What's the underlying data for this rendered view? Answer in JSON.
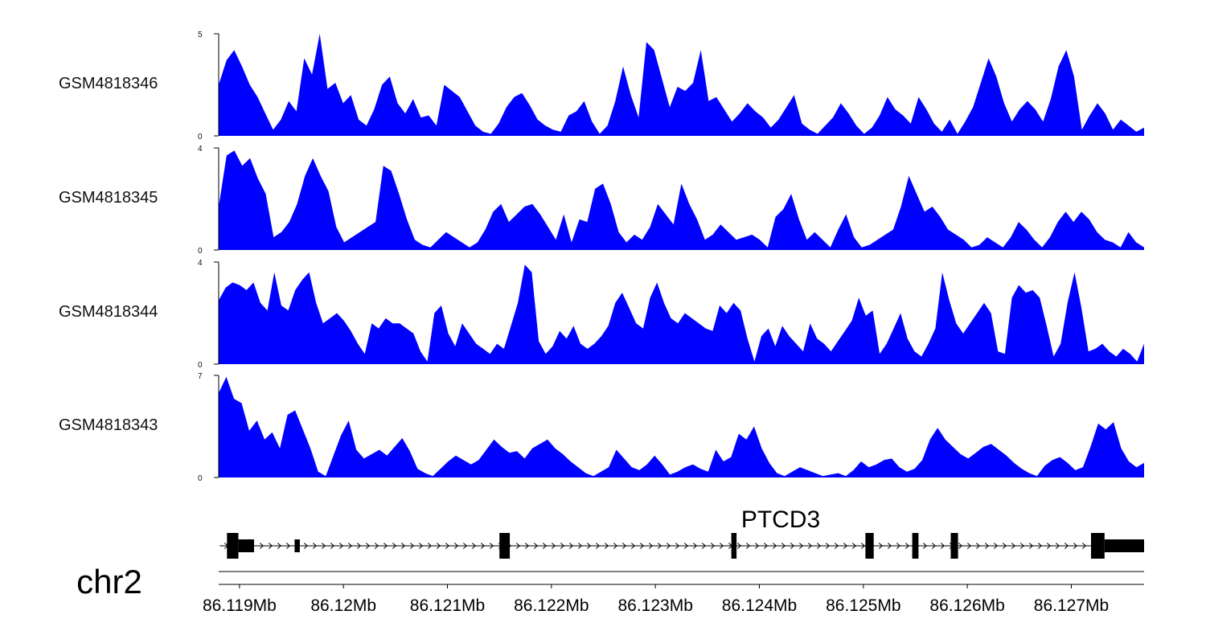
{
  "chart_data": {
    "type": "area",
    "title": "",
    "chromosome": "chr2",
    "xlabel": "",
    "x_unit": "Mb",
    "xlim": [
      86.1188,
      86.1277
    ],
    "colors": {
      "fill": "#0000ff",
      "axis": "#000000"
    },
    "tracks": [
      {
        "name": "GSM4818346",
        "ylim": [
          0,
          5
        ],
        "y_ticks": [
          "5",
          "0"
        ],
        "values": [
          2.5,
          3.7,
          4.2,
          3.4,
          2.5,
          1.9,
          1.1,
          0.3,
          0.8,
          1.7,
          1.2,
          3.8,
          3.0,
          5.0,
          2.3,
          2.6,
          1.6,
          2.0,
          0.8,
          0.5,
          1.3,
          2.5,
          2.9,
          1.6,
          1.1,
          1.8,
          0.9,
          1.0,
          0.5,
          2.5,
          2.2,
          1.9,
          1.2,
          0.5,
          0.2,
          0.1,
          0.6,
          1.4,
          1.9,
          2.1,
          1.5,
          0.8,
          0.5,
          0.3,
          0.2,
          1.0,
          1.2,
          1.7,
          0.7,
          0.1,
          0.5,
          1.7,
          3.4,
          2.0,
          0.9,
          4.6,
          4.2,
          2.8,
          1.4,
          2.4,
          2.2,
          2.6,
          4.2,
          1.7,
          1.9,
          1.3,
          0.7,
          1.1,
          1.6,
          1.2,
          0.9,
          0.4,
          0.8,
          1.4,
          2.0,
          0.6,
          0.3,
          0.1,
          0.5,
          0.9,
          1.6,
          1.1,
          0.5,
          0.1,
          0.4,
          1.0,
          1.9,
          1.3,
          1.0,
          0.6,
          1.9,
          1.3,
          0.6,
          0.2,
          0.8,
          0.1,
          0.7,
          1.4,
          2.6,
          3.8,
          2.9,
          1.6,
          0.7,
          1.3,
          1.7,
          1.3,
          0.7,
          1.8,
          3.4,
          4.2,
          2.9,
          0.3,
          1.0,
          1.6,
          1.1,
          0.3,
          0.8,
          0.5,
          0.2,
          0.4
        ]
      },
      {
        "name": "GSM4818345",
        "ylim": [
          0,
          4
        ],
        "y_ticks": [
          "4",
          "0"
        ],
        "values": [
          1.7,
          3.7,
          3.9,
          3.3,
          3.6,
          2.8,
          2.2,
          0.5,
          0.7,
          1.1,
          1.8,
          2.9,
          3.6,
          2.9,
          2.3,
          0.9,
          0.3,
          0.5,
          0.7,
          0.9,
          1.1,
          3.3,
          3.1,
          2.2,
          1.2,
          0.4,
          0.2,
          0.1,
          0.4,
          0.7,
          0.5,
          0.3,
          0.1,
          0.3,
          0.8,
          1.5,
          1.8,
          1.1,
          1.4,
          1.7,
          1.8,
          1.4,
          0.9,
          0.4,
          1.4,
          0.3,
          1.2,
          1.1,
          2.4,
          2.6,
          1.8,
          0.7,
          0.3,
          0.6,
          0.4,
          0.9,
          1.8,
          1.4,
          1.0,
          2.6,
          1.8,
          1.2,
          0.4,
          0.6,
          1.0,
          0.7,
          0.4,
          0.5,
          0.6,
          0.4,
          0.1,
          1.3,
          1.6,
          2.2,
          1.2,
          0.4,
          0.7,
          0.4,
          0.1,
          0.8,
          1.4,
          0.5,
          0.1,
          0.2,
          0.4,
          0.6,
          0.8,
          1.7,
          2.9,
          2.2,
          1.5,
          1.7,
          1.3,
          0.8,
          0.6,
          0.4,
          0.1,
          0.2,
          0.5,
          0.3,
          0.1,
          0.5,
          1.1,
          0.8,
          0.4,
          0.1,
          0.5,
          1.1,
          1.5,
          1.1,
          1.5,
          1.2,
          0.7,
          0.4,
          0.3,
          0.1,
          0.7,
          0.3,
          0.1
        ]
      },
      {
        "name": "GSM4818344",
        "ylim": [
          0,
          4
        ],
        "y_ticks": [
          "4",
          "0"
        ],
        "values": [
          2.5,
          3.0,
          3.2,
          3.1,
          2.9,
          3.2,
          2.4,
          2.1,
          3.6,
          2.3,
          2.1,
          2.9,
          3.3,
          3.6,
          2.4,
          1.6,
          1.8,
          2.0,
          1.7,
          1.3,
          0.8,
          0.4,
          1.6,
          1.4,
          1.8,
          1.6,
          1.6,
          1.4,
          1.2,
          0.5,
          0.1,
          2.0,
          2.3,
          1.2,
          0.7,
          1.6,
          1.2,
          0.8,
          0.6,
          0.4,
          0.8,
          0.6,
          1.5,
          2.4,
          3.9,
          3.6,
          0.9,
          0.4,
          0.7,
          1.3,
          1.0,
          1.5,
          0.8,
          0.6,
          0.8,
          1.1,
          1.5,
          2.4,
          2.8,
          2.2,
          1.6,
          1.4,
          2.6,
          3.2,
          2.4,
          1.8,
          1.6,
          2.0,
          1.8,
          1.6,
          1.4,
          1.3,
          2.3,
          2.0,
          2.4,
          2.1,
          1.0,
          0.1,
          1.1,
          1.4,
          0.7,
          1.5,
          1.1,
          0.8,
          0.5,
          1.6,
          1.0,
          0.8,
          0.5,
          0.9,
          1.3,
          1.7,
          2.6,
          1.9,
          2.1,
          0.4,
          0.8,
          1.4,
          2.0,
          1.0,
          0.5,
          0.3,
          0.8,
          1.4,
          3.6,
          2.5,
          1.6,
          1.2,
          1.6,
          2.0,
          2.4,
          2.0,
          0.5,
          0.4,
          2.6,
          3.1,
          2.8,
          2.9,
          2.6,
          1.5,
          0.3,
          0.8,
          2.4,
          3.6,
          2.2,
          0.5,
          0.6,
          0.8,
          0.5,
          0.3,
          0.6,
          0.4,
          0.1,
          0.8
        ]
      },
      {
        "name": "GSM4818343",
        "ylim": [
          0,
          7
        ],
        "y_ticks": [
          "7",
          "0"
        ],
        "values": [
          5.8,
          6.9,
          5.4,
          5.1,
          3.2,
          3.9,
          2.6,
          3.1,
          2.0,
          4.3,
          4.6,
          3.3,
          2.0,
          0.4,
          0.1,
          1.5,
          2.9,
          3.9,
          1.9,
          1.3,
          1.6,
          1.9,
          1.5,
          2.1,
          2.7,
          1.8,
          0.6,
          0.3,
          0.1,
          0.6,
          1.1,
          1.5,
          1.2,
          0.9,
          1.2,
          1.9,
          2.6,
          2.1,
          1.7,
          1.8,
          1.3,
          2.0,
          2.3,
          2.6,
          2.0,
          1.6,
          1.1,
          0.7,
          0.3,
          0.1,
          0.4,
          0.7,
          1.9,
          1.3,
          0.7,
          0.5,
          0.9,
          1.5,
          0.9,
          0.2,
          0.4,
          0.7,
          0.9,
          0.6,
          0.4,
          1.9,
          1.1,
          1.4,
          3.0,
          2.6,
          3.5,
          2.0,
          1.0,
          0.3,
          0.1,
          0.4,
          0.7,
          0.5,
          0.3,
          0.1,
          0.2,
          0.3,
          0.1,
          0.5,
          1.1,
          0.7,
          0.9,
          1.2,
          1.3,
          0.7,
          0.4,
          0.6,
          1.2,
          2.6,
          3.4,
          2.6,
          2.1,
          1.6,
          1.3,
          1.7,
          2.1,
          2.3,
          1.9,
          1.5,
          1.0,
          0.6,
          0.3,
          0.1,
          0.8,
          1.2,
          1.4,
          1.0,
          0.5,
          0.7,
          2.1,
          3.7,
          3.3,
          3.8,
          2.0,
          1.1,
          0.7,
          1.0
        ]
      }
    ],
    "gene": {
      "name": "PTCD3",
      "strand": "+",
      "exons": [
        {
          "start": 86.11888,
          "end": 86.11899,
          "thick": true
        },
        {
          "start": 86.11899,
          "end": 86.11914,
          "thick": false
        },
        {
          "start": 86.11953,
          "end": 86.11958,
          "thick": false
        },
        {
          "start": 86.1215,
          "end": 86.1216,
          "thick": true
        },
        {
          "start": 86.12373,
          "end": 86.12378,
          "thick": true
        },
        {
          "start": 86.12502,
          "end": 86.1251,
          "thick": true
        },
        {
          "start": 86.12547,
          "end": 86.12553,
          "thick": true
        },
        {
          "start": 86.12584,
          "end": 86.12591,
          "thick": true
        },
        {
          "start": 86.12719,
          "end": 86.12732,
          "thick": true
        },
        {
          "start": 86.12732,
          "end": 86.1277,
          "thick": false
        }
      ],
      "transcript_start": 86.11881,
      "transcript_end": 86.1277
    },
    "x_ticks": [
      {
        "value": 86.119,
        "label": "86.119Mb"
      },
      {
        "value": 86.12,
        "label": "86.12Mb"
      },
      {
        "value": 86.121,
        "label": "86.121Mb"
      },
      {
        "value": 86.122,
        "label": "86.122Mb"
      },
      {
        "value": 86.123,
        "label": "86.123Mb"
      },
      {
        "value": 86.124,
        "label": "86.124Mb"
      },
      {
        "value": 86.125,
        "label": "86.125Mb"
      },
      {
        "value": 86.126,
        "label": "86.126Mb"
      },
      {
        "value": 86.127,
        "label": "86.127Mb"
      }
    ]
  }
}
